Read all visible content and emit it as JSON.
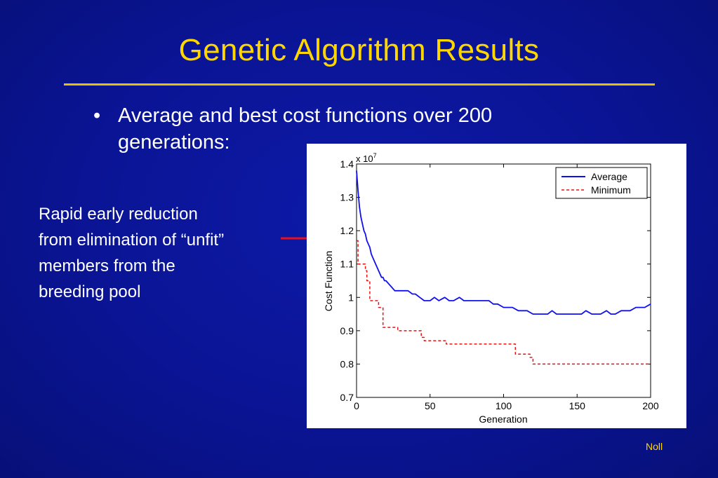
{
  "slide": {
    "title": "Genetic Algorithm Results",
    "bullet_marker": "•",
    "bullet_text": "Average and best cost functions over 200 generations:",
    "side_note_lines": [
      "Rapid early reduction",
      "from elimination of “unfit”",
      "members from the",
      "breeding pool"
    ],
    "credit": "Noll"
  },
  "colors": {
    "title": "#ffd700",
    "background": "#0a1494",
    "arrow": "#e8101a",
    "average_line": "#1010ee",
    "minimum_line": "#ee1010"
  },
  "chart_data": {
    "type": "line",
    "xlabel": "Generation",
    "ylabel": "Cost Function",
    "exponent_label": "x 10",
    "exponent_power": "7",
    "xlim": [
      0,
      200
    ],
    "ylim": [
      0.7,
      1.4
    ],
    "xticks": [
      0,
      50,
      100,
      150,
      200
    ],
    "yticks": [
      0.7,
      0.8,
      0.9,
      1.0,
      1.1,
      1.2,
      1.3,
      1.4
    ],
    "xtick_labels": [
      "0",
      "50",
      "100",
      "150",
      "200"
    ],
    "ytick_labels": [
      "0.7",
      "0.8",
      "0.9",
      "1",
      "1.1",
      "1.2",
      "1.3",
      "1.4"
    ],
    "legend_position": "top-right",
    "series": [
      {
        "name": "Average",
        "style": "solid",
        "x": [
          0,
          1,
          2,
          3,
          4,
          5,
          6,
          7,
          8,
          9,
          10,
          11,
          12,
          13,
          14,
          15,
          16,
          17,
          18,
          19,
          20,
          22,
          24,
          26,
          28,
          30,
          32,
          35,
          38,
          40,
          43,
          46,
          50,
          53,
          56,
          60,
          63,
          66,
          70,
          73,
          76,
          80,
          83,
          86,
          90,
          93,
          96,
          100,
          103,
          106,
          110,
          113,
          116,
          120,
          123,
          126,
          130,
          133,
          136,
          140,
          143,
          146,
          150,
          153,
          156,
          160,
          163,
          166,
          170,
          173,
          176,
          180,
          183,
          186,
          190,
          193,
          196,
          200
        ],
        "values": [
          1.38,
          1.32,
          1.27,
          1.24,
          1.22,
          1.2,
          1.19,
          1.17,
          1.16,
          1.15,
          1.13,
          1.12,
          1.11,
          1.1,
          1.09,
          1.08,
          1.07,
          1.06,
          1.06,
          1.05,
          1.05,
          1.04,
          1.03,
          1.02,
          1.02,
          1.02,
          1.02,
          1.02,
          1.01,
          1.01,
          1.0,
          0.99,
          0.99,
          1.0,
          0.99,
          1.0,
          0.99,
          0.99,
          1.0,
          0.99,
          0.99,
          0.99,
          0.99,
          0.99,
          0.99,
          0.98,
          0.98,
          0.97,
          0.97,
          0.97,
          0.96,
          0.96,
          0.96,
          0.95,
          0.95,
          0.95,
          0.95,
          0.96,
          0.95,
          0.95,
          0.95,
          0.95,
          0.95,
          0.95,
          0.96,
          0.95,
          0.95,
          0.95,
          0.96,
          0.95,
          0.95,
          0.96,
          0.96,
          0.96,
          0.97,
          0.97,
          0.97,
          0.98
        ]
      },
      {
        "name": "Minimum",
        "style": "dashed",
        "x": [
          0,
          1,
          1,
          6,
          6,
          7,
          7,
          9,
          9,
          15,
          15,
          18,
          18,
          28,
          28,
          44,
          44,
          46,
          46,
          61,
          61,
          108,
          108,
          118,
          118,
          120,
          120,
          200
        ],
        "values": [
          1.17,
          1.17,
          1.1,
          1.1,
          1.08,
          1.08,
          1.05,
          1.05,
          0.99,
          0.99,
          0.97,
          0.97,
          0.91,
          0.91,
          0.9,
          0.9,
          0.88,
          0.88,
          0.87,
          0.87,
          0.86,
          0.86,
          0.83,
          0.83,
          0.82,
          0.82,
          0.8,
          0.8
        ]
      }
    ]
  }
}
